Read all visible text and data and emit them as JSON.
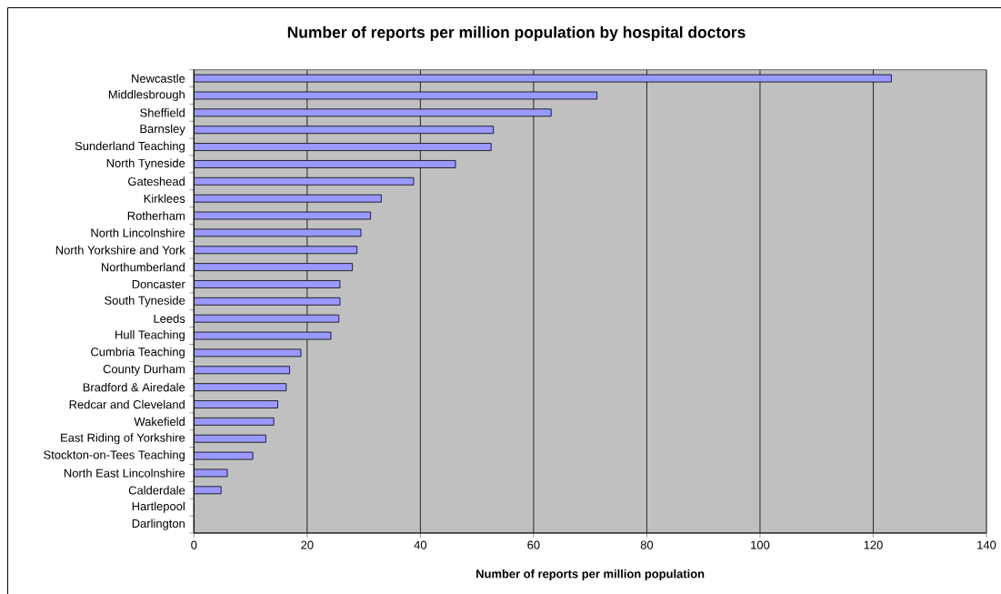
{
  "chart_data": {
    "type": "bar",
    "orientation": "horizontal",
    "title": "Number of reports per million population by hospital doctors",
    "xlabel": "Number of reports per million population",
    "categories": [
      "Newcastle",
      "Middlesbrough",
      "Sheffield",
      "Barnsley",
      "Sunderland Teaching",
      "North Tyneside",
      "Gateshead",
      "Kirklees",
      "Rotherham",
      "North Lincolnshire",
      "North Yorkshire and York",
      "Northumberland",
      "Doncaster",
      "South Tyneside",
      "Leeds",
      "Hull Teaching",
      "Cumbria Teaching",
      "County Durham",
      "Bradford & Airedale",
      "Redcar and Cleveland",
      "Wakefield",
      "East Riding of Yorkshire",
      "Stockton-on-Tees Teaching",
      "North East Lincolnshire",
      "Calderdale",
      "Hartlepool",
      "Darlington"
    ],
    "values": [
      123.2,
      71.2,
      63.1,
      52.9,
      52.5,
      46.2,
      38.8,
      33.1,
      31.2,
      29.5,
      28.8,
      28.0,
      25.8,
      25.8,
      25.6,
      24.2,
      18.9,
      16.9,
      16.3,
      14.8,
      14.1,
      12.7,
      10.4,
      5.9,
      4.8,
      0,
      0
    ],
    "color": "#9999ff",
    "xlim": [
      0,
      140
    ],
    "xticks": [
      0,
      20,
      40,
      60,
      80,
      100,
      120,
      140
    ],
    "grid": "x"
  }
}
